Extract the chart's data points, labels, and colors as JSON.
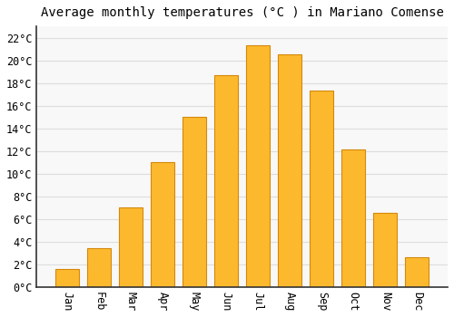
{
  "title": "Average monthly temperatures (°C ) in Mariano Comense",
  "months": [
    "Jan",
    "Feb",
    "Mar",
    "Apr",
    "May",
    "Jun",
    "Jul",
    "Aug",
    "Sep",
    "Oct",
    "Nov",
    "Dec"
  ],
  "temperatures": [
    1.6,
    3.4,
    7.0,
    11.0,
    15.0,
    18.7,
    21.3,
    20.5,
    17.3,
    12.1,
    6.5,
    2.6
  ],
  "bar_color": "#FDB92E",
  "bar_edge_color": "#D4880A",
  "background_color": "#FFFFFF",
  "plot_bg_color": "#F8F8F8",
  "grid_color": "#DDDDDD",
  "ylim": [
    0,
    23
  ],
  "yticks": [
    0,
    2,
    4,
    6,
    8,
    10,
    12,
    14,
    16,
    18,
    20,
    22
  ],
  "ytick_labels": [
    "0°C",
    "2°C",
    "4°C",
    "6°C",
    "8°C",
    "10°C",
    "12°C",
    "14°C",
    "16°C",
    "18°C",
    "20°C",
    "22°C"
  ],
  "title_fontsize": 10,
  "tick_fontsize": 8.5,
  "font_family": "monospace"
}
